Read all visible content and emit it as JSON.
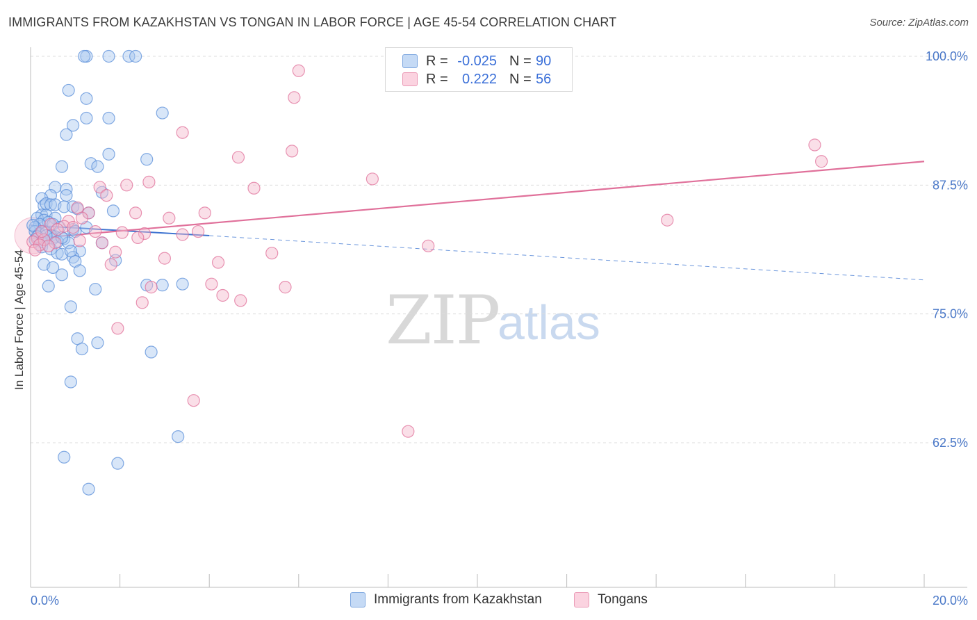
{
  "header": {
    "title": "IMMIGRANTS FROM KAZAKHSTAN VS TONGAN IN LABOR FORCE | AGE 45-54 CORRELATION CHART",
    "source": "Source: ZipAtlas.com"
  },
  "watermark": {
    "zip": "ZIP",
    "atlas": "atlas"
  },
  "legend": {
    "rows": [
      {
        "r_label": "R =",
        "r_value": "-0.025",
        "n_label": "N =",
        "n_value": "90",
        "color": "#a9c8f0"
      },
      {
        "r_label": "R =",
        "r_value": "0.222",
        "n_label": "N =",
        "n_value": "56",
        "color": "#f5b8cc"
      }
    ]
  },
  "chart_data": {
    "type": "scatter",
    "title": "IMMIGRANTS FROM KAZAKHSTAN VS TONGAN IN LABOR FORCE | AGE 45-54 CORRELATION CHART",
    "xlabel": "",
    "ylabel": "In Labor Force | Age 45-54",
    "xlim": [
      0,
      20
    ],
    "ylim": [
      50,
      102
    ],
    "x_tick_labels": [
      "0.0%",
      "20.0%"
    ],
    "y_ticks": [
      62.5,
      75.0,
      87.5,
      100.0
    ],
    "y_tick_labels": [
      "62.5%",
      "75.0%",
      "87.5%",
      "100.0%"
    ],
    "grid": true,
    "legend_position": "top-center",
    "series": [
      {
        "name": "Immigrants from Kazakhstan",
        "color": "#5b8fd9",
        "fill": "#a9c8f0",
        "trend": {
          "x0": 0.0,
          "y0": 83.6,
          "x1": 4.0,
          "y1": 82.6,
          "dashed_to_x": 20.0,
          "dashed_to_y": 78.3
        },
        "points": [
          [
            1.25,
            100.0
          ],
          [
            1.75,
            100.0
          ],
          [
            2.2,
            100.0
          ],
          [
            2.35,
            100.0
          ],
          [
            1.2,
            100.0
          ],
          [
            0.85,
            96.7
          ],
          [
            1.25,
            95.9
          ],
          [
            2.95,
            94.5
          ],
          [
            1.25,
            94.0
          ],
          [
            1.75,
            94.0
          ],
          [
            0.95,
            93.3
          ],
          [
            0.8,
            92.4
          ],
          [
            1.75,
            90.5
          ],
          [
            2.6,
            90.0
          ],
          [
            1.35,
            89.6
          ],
          [
            1.5,
            89.3
          ],
          [
            0.7,
            89.3
          ],
          [
            0.55,
            87.3
          ],
          [
            0.8,
            87.1
          ],
          [
            1.6,
            86.8
          ],
          [
            0.8,
            86.5
          ],
          [
            0.45,
            86.5
          ],
          [
            0.25,
            86.2
          ],
          [
            0.3,
            85.5
          ],
          [
            0.35,
            85.7
          ],
          [
            0.45,
            85.6
          ],
          [
            0.55,
            85.6
          ],
          [
            0.75,
            85.4
          ],
          [
            0.95,
            85.4
          ],
          [
            1.05,
            85.2
          ],
          [
            1.85,
            85.0
          ],
          [
            1.3,
            84.8
          ],
          [
            0.25,
            84.6
          ],
          [
            0.35,
            84.6
          ],
          [
            0.55,
            84.3
          ],
          [
            0.15,
            84.3
          ],
          [
            0.3,
            84.1
          ],
          [
            0.4,
            83.9
          ],
          [
            0.2,
            83.7
          ],
          [
            0.1,
            83.4
          ],
          [
            0.5,
            83.7
          ],
          [
            0.65,
            83.4
          ],
          [
            0.95,
            83.2
          ],
          [
            1.25,
            83.4
          ],
          [
            0.1,
            83.0
          ],
          [
            0.2,
            82.8
          ],
          [
            0.35,
            82.9
          ],
          [
            0.45,
            82.6
          ],
          [
            0.55,
            82.5
          ],
          [
            0.75,
            82.3
          ],
          [
            0.1,
            82.2
          ],
          [
            0.25,
            82.0
          ],
          [
            0.5,
            82.3
          ],
          [
            0.6,
            82.0
          ],
          [
            0.85,
            81.9
          ],
          [
            0.25,
            81.5
          ],
          [
            0.45,
            81.3
          ],
          [
            0.6,
            80.9
          ],
          [
            1.1,
            81.1
          ],
          [
            1.6,
            81.9
          ],
          [
            0.7,
            80.8
          ],
          [
            0.95,
            80.5
          ],
          [
            1.0,
            80.1
          ],
          [
            1.9,
            80.2
          ],
          [
            0.3,
            79.8
          ],
          [
            0.5,
            79.5
          ],
          [
            1.1,
            79.2
          ],
          [
            0.7,
            78.8
          ],
          [
            0.4,
            77.7
          ],
          [
            2.6,
            77.8
          ],
          [
            2.95,
            77.8
          ],
          [
            3.4,
            77.9
          ],
          [
            1.45,
            77.4
          ],
          [
            0.9,
            75.7
          ],
          [
            1.05,
            72.6
          ],
          [
            1.5,
            72.2
          ],
          [
            1.15,
            71.6
          ],
          [
            2.7,
            71.3
          ],
          [
            0.9,
            68.4
          ],
          [
            3.3,
            63.1
          ],
          [
            0.75,
            61.1
          ],
          [
            1.95,
            60.5
          ],
          [
            1.3,
            58.0
          ],
          [
            0.35,
            82.6
          ],
          [
            0.15,
            82.5
          ],
          [
            0.3,
            82.2
          ],
          [
            0.7,
            82.4
          ],
          [
            0.9,
            81.1
          ],
          [
            1.0,
            83.0
          ],
          [
            0.05,
            83.6
          ]
        ]
      },
      {
        "name": "Tongans",
        "color": "#e0709a",
        "fill": "#f5b8cc",
        "trend": {
          "x0": 0.0,
          "y0": 82.3,
          "x1": 20.0,
          "y1": 89.8
        },
        "points": [
          [
            6.0,
            98.6
          ],
          [
            5.9,
            96.0
          ],
          [
            3.4,
            92.6
          ],
          [
            5.85,
            90.8
          ],
          [
            4.65,
            90.2
          ],
          [
            17.55,
            91.4
          ],
          [
            17.7,
            89.8
          ],
          [
            7.65,
            88.1
          ],
          [
            2.65,
            87.8
          ],
          [
            2.15,
            87.5
          ],
          [
            1.55,
            87.3
          ],
          [
            5.0,
            87.2
          ],
          [
            1.7,
            86.5
          ],
          [
            1.05,
            85.3
          ],
          [
            2.35,
            84.8
          ],
          [
            3.9,
            84.8
          ],
          [
            3.1,
            84.3
          ],
          [
            1.3,
            84.8
          ],
          [
            1.15,
            84.3
          ],
          [
            14.25,
            84.1
          ],
          [
            0.85,
            84.0
          ],
          [
            0.45,
            83.7
          ],
          [
            0.75,
            83.5
          ],
          [
            0.95,
            83.4
          ],
          [
            0.6,
            83.2
          ],
          [
            1.45,
            83.0
          ],
          [
            2.05,
            82.9
          ],
          [
            2.55,
            82.8
          ],
          [
            3.4,
            82.7
          ],
          [
            3.75,
            83.0
          ],
          [
            2.4,
            82.4
          ],
          [
            0.15,
            82.3
          ],
          [
            0.3,
            82.2
          ],
          [
            0.05,
            82.0
          ],
          [
            0.2,
            81.7
          ],
          [
            0.55,
            81.9
          ],
          [
            1.1,
            82.1
          ],
          [
            1.6,
            81.9
          ],
          [
            1.9,
            81.0
          ],
          [
            8.9,
            81.6
          ],
          [
            5.4,
            80.9
          ],
          [
            3.0,
            80.4
          ],
          [
            4.2,
            80.0
          ],
          [
            1.8,
            79.8
          ],
          [
            2.7,
            77.6
          ],
          [
            4.05,
            77.9
          ],
          [
            5.7,
            77.6
          ],
          [
            4.3,
            76.8
          ],
          [
            4.7,
            76.3
          ],
          [
            2.5,
            76.1
          ],
          [
            1.95,
            73.6
          ],
          [
            3.65,
            66.6
          ],
          [
            8.45,
            63.6
          ],
          [
            0.25,
            83.0
          ],
          [
            0.4,
            81.6
          ],
          [
            0.1,
            81.2
          ]
        ]
      }
    ],
    "bottom_legend": [
      "Immigrants from Kazakhstan",
      "Tongans"
    ]
  }
}
